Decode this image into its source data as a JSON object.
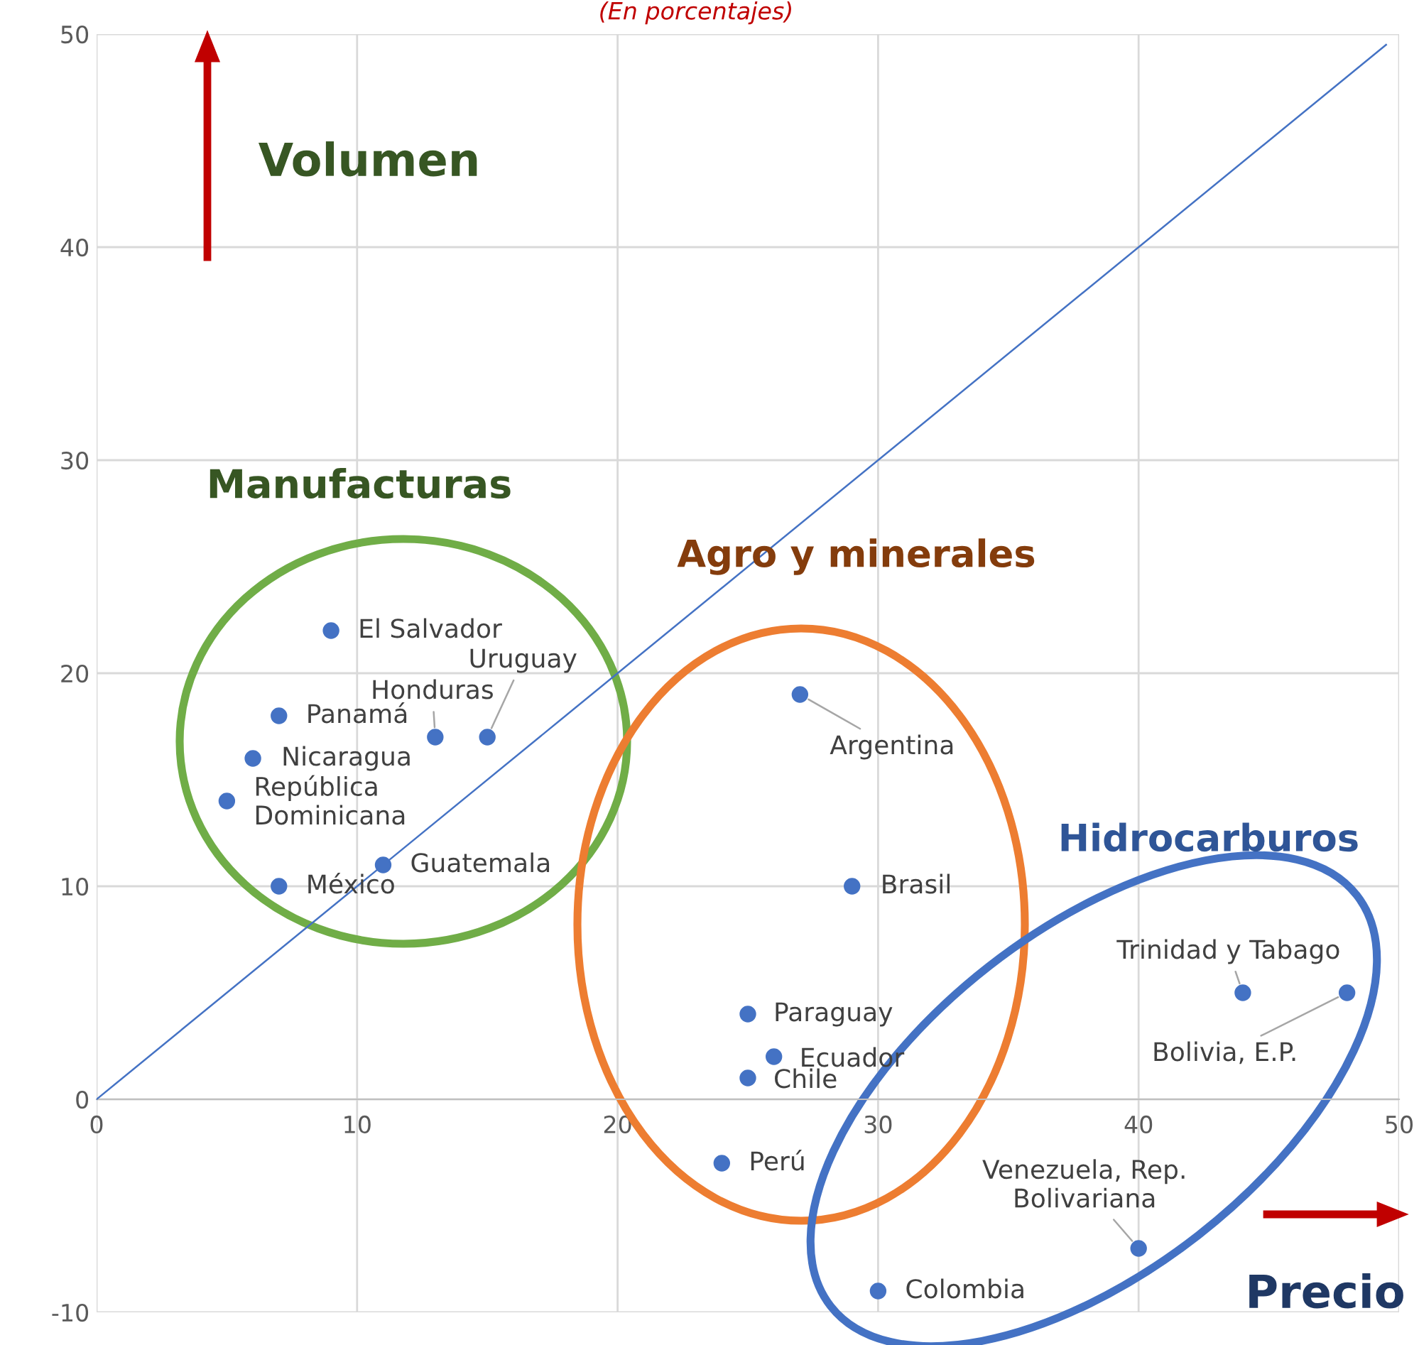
{
  "chart_data": {
    "type": "scatter",
    "subtitle": "(En porcentajes)",
    "series": [
      {
        "type": "scatter",
        "marker": "circle",
        "color": "#4472c4",
        "x": [
          9,
          7,
          13,
          15,
          6,
          5,
          11,
          7,
          27,
          29,
          25,
          26,
          25,
          24,
          30,
          40,
          44,
          48
        ],
        "values": [
          22,
          18,
          17,
          17,
          16,
          14,
          11,
          10,
          19,
          10,
          4,
          2,
          1,
          -3,
          -9,
          -7,
          5,
          5
        ]
      },
      {
        "type": "line",
        "marker": "none",
        "color": "#4472c4",
        "x": [
          0,
          49.5
        ],
        "values": [
          0,
          49.5
        ]
      }
    ],
    "xlim": [
      0,
      50
    ],
    "ylim": [
      -10,
      50
    ],
    "xticks": [
      0,
      10,
      20,
      30,
      40,
      50
    ],
    "yticks": [
      -10,
      0,
      10,
      20,
      30,
      40,
      50
    ],
    "grid": true,
    "annotations": [
      {
        "text": "El Salvador",
        "x": 9,
        "y": 22
      },
      {
        "text": "Panamá",
        "x": 7,
        "y": 18
      },
      {
        "text": "Honduras",
        "x": 13,
        "y": 17
      },
      {
        "text": "Uruguay",
        "x": 15,
        "y": 17
      },
      {
        "text": "Nicaragua",
        "x": 6,
        "y": 16
      },
      {
        "text": "República\nDominicana",
        "x": 5,
        "y": 14
      },
      {
        "text": "Guatemala",
        "x": 11,
        "y": 11
      },
      {
        "text": "México",
        "x": 7,
        "y": 10
      },
      {
        "text": "Argentina",
        "x": 27,
        "y": 19
      },
      {
        "text": "Brasil",
        "x": 29,
        "y": 10
      },
      {
        "text": "Paraguay",
        "x": 25,
        "y": 4
      },
      {
        "text": "Ecuador",
        "x": 26,
        "y": 2
      },
      {
        "text": "Chile",
        "x": 25,
        "y": 1
      },
      {
        "text": "Perú",
        "x": 24,
        "y": -3
      },
      {
        "text": "Colombia",
        "x": 30,
        "y": -9
      },
      {
        "text": "Venezuela, Rep.\nBolivariana",
        "x": 40,
        "y": -7
      },
      {
        "text": "Trinidad y Tabago",
        "x": 44,
        "y": 5
      },
      {
        "text": "Bolivia, E.P.",
        "x": 48,
        "y": 5
      },
      "Manufacturas",
      "Agro y minerales",
      "Hidrocarburos",
      "Volumen",
      "Precio"
    ]
  }
}
